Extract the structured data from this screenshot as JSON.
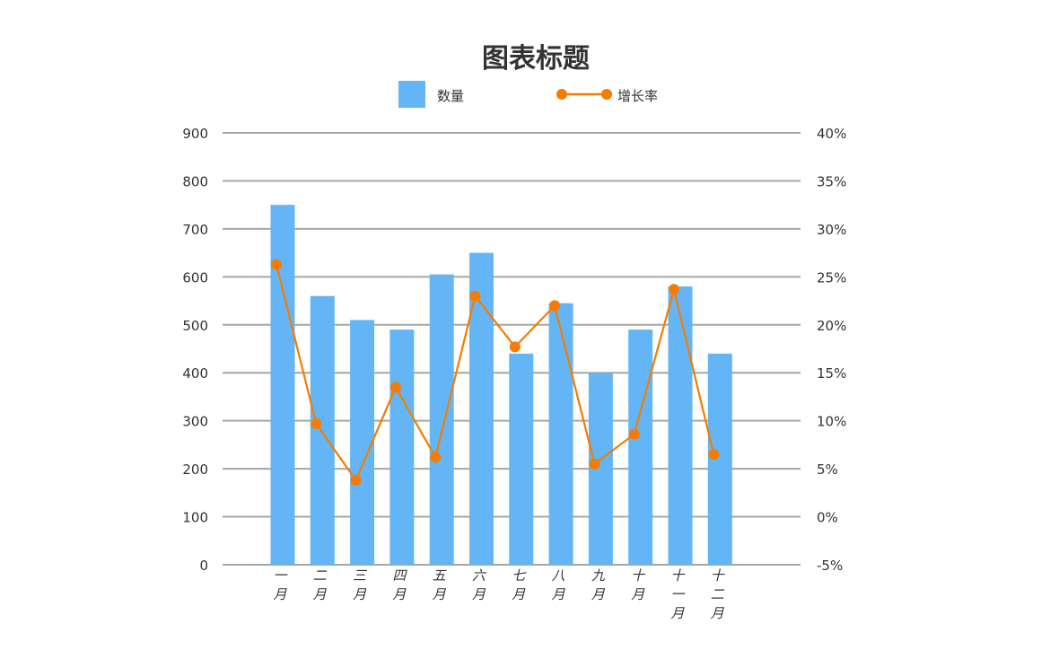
{
  "chart_data": {
    "type": "bar",
    "title": "图表标题",
    "categories": [
      "一月",
      "二月",
      "三月",
      "四月",
      "五月",
      "六月",
      "七月",
      "八月",
      "九月",
      "十月",
      "十一月",
      "十二月"
    ],
    "series": [
      {
        "name": "数量",
        "type": "bar",
        "axis": "left",
        "color": "#64b5f6",
        "values": [
          750,
          560,
          510,
          490,
          605,
          650,
          440,
          545,
          400,
          490,
          580,
          440
        ]
      },
      {
        "name": "增长率",
        "type": "line",
        "axis": "right",
        "color": "#f57c00",
        "values": [
          26.3,
          9.7,
          3.8,
          13.5,
          6.2,
          23.0,
          17.7,
          22.0,
          5.5,
          8.6,
          23.7,
          6.5
        ]
      }
    ],
    "y_left": {
      "ticks": [
        0,
        100,
        200,
        300,
        400,
        500,
        600,
        700,
        800,
        900
      ],
      "labels": [
        "0",
        "100",
        "200",
        "300",
        "400",
        "500",
        "600",
        "700",
        "800",
        "900"
      ]
    },
    "y_right": {
      "ticks": [
        -5,
        0,
        5,
        10,
        15,
        20,
        25,
        30,
        35,
        40
      ],
      "labels": [
        "-5%",
        "0%",
        "5%",
        "10%",
        "15%",
        "20%",
        "25%",
        "30%",
        "35%",
        "40%"
      ]
    },
    "grid": true,
    "legend_position": "top"
  }
}
